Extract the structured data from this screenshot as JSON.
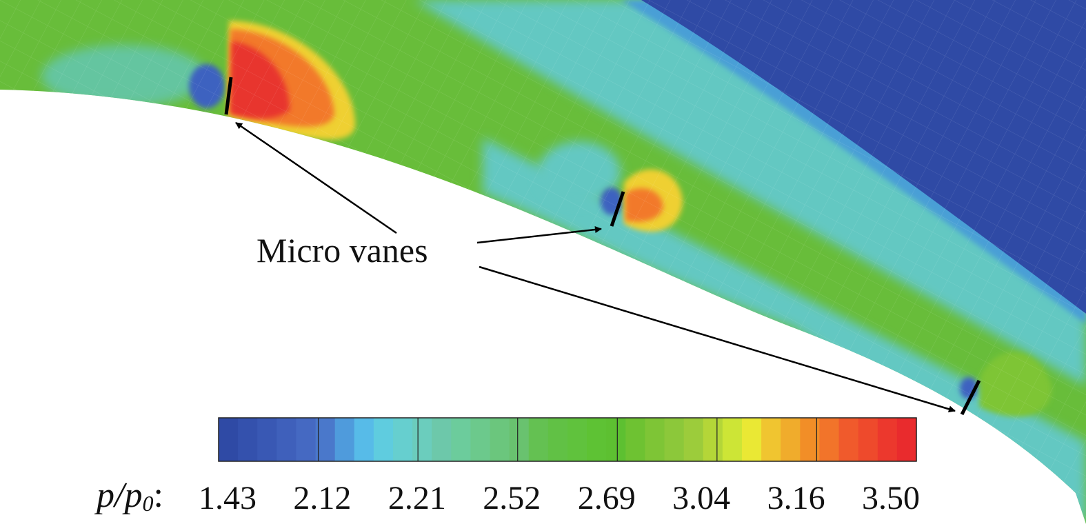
{
  "annotation": {
    "label": "Micro vanes"
  },
  "legend": {
    "variable_label": "p/p",
    "variable_subscript": "0",
    "separator": ":",
    "ticks": [
      "1.43",
      "2.12",
      "2.21",
      "2.52",
      "2.69",
      "3.04",
      "3.16",
      "3.50"
    ],
    "colors": [
      "#2f4aa5",
      "#3451ad",
      "#3958b4",
      "#3f60bb",
      "#4569c2",
      "#4a78cb",
      "#4f9bdc",
      "#57bbe8",
      "#5fccdf",
      "#66cfcf",
      "#6bcdbd",
      "#6dc8aa",
      "#6ccc9c",
      "#6cc98c",
      "#6bc67d",
      "#69c26f",
      "#64c152",
      "#61c145",
      "#60c23d",
      "#5ec234",
      "#5dc031",
      "#6ec232",
      "#7ec536",
      "#8cc83a",
      "#9ccc3b",
      "#b4d638",
      "#cde536",
      "#eae834",
      "#f0c530",
      "#f0ac2c",
      "#f28e27",
      "#f2742a",
      "#f05a2c",
      "#ee4a2c",
      "#ec382d",
      "#e92b2d"
    ]
  },
  "colors": {
    "far_field": "#2f4aa5",
    "outer_band": "#63c8c2",
    "main_flow": "#68bd3a",
    "low_pressure": "#3c62c0",
    "high_pressure": "#e8342e",
    "vane": "#000000"
  }
}
